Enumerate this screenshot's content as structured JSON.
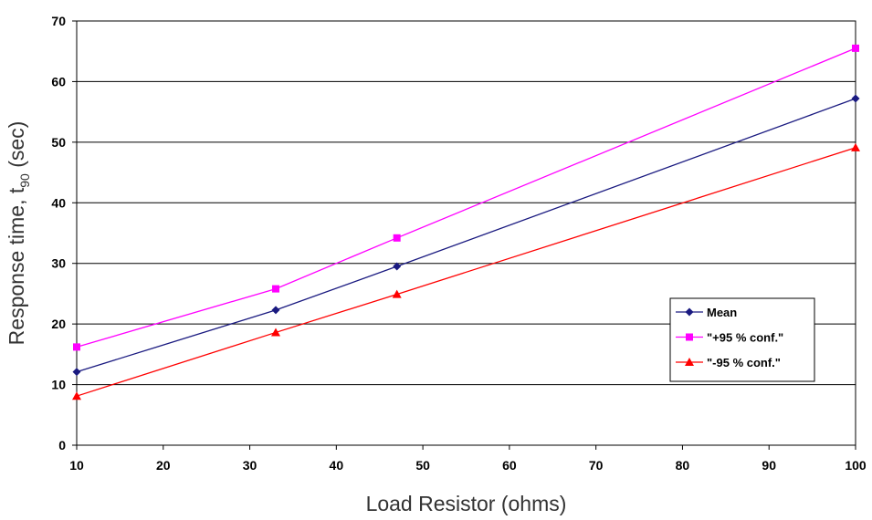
{
  "chart_data": {
    "type": "line",
    "title": "",
    "xlabel": "Load Resistor (ohms)",
    "ylabel": {
      "main": "Response time, t",
      "subscript": "90",
      "suffix": " (sec)"
    },
    "xlim": [
      10,
      100
    ],
    "ylim": [
      0,
      70
    ],
    "x_ticks": [
      "10",
      "20",
      "30",
      "40",
      "50",
      "60",
      "70",
      "80",
      "90",
      "100"
    ],
    "y_ticks": [
      "0",
      "10",
      "20",
      "30",
      "40",
      "50",
      "60",
      "70"
    ],
    "grid": "horizontal",
    "legend_position": "lower-right",
    "series": [
      {
        "name": "Mean",
        "color": "#1a1a80",
        "marker": "diamond",
        "x": [
          10,
          33,
          47,
          100
        ],
        "y": [
          12.1,
          22.3,
          29.5,
          57.2
        ]
      },
      {
        "name": "\"+95 % conf.\"",
        "color": "#ff00ff",
        "marker": "square",
        "x": [
          10,
          33,
          47,
          100
        ],
        "y": [
          16.2,
          25.8,
          34.2,
          65.5
        ]
      },
      {
        "name": "\"-95 % conf.\"",
        "color": "#ff0000",
        "marker": "triangle",
        "x": [
          10,
          33,
          47,
          100
        ],
        "y": [
          8.1,
          18.6,
          24.9,
          49.1
        ]
      }
    ]
  }
}
